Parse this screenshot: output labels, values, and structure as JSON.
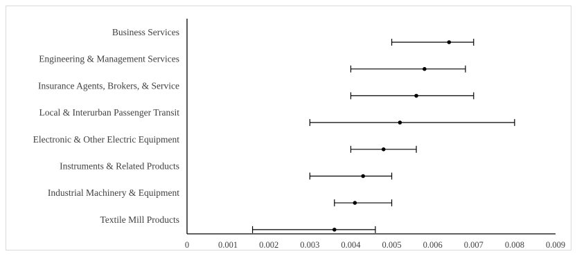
{
  "chart_data": {
    "type": "scatter",
    "orientation": "horizontal",
    "title": "",
    "xlabel": "",
    "ylabel": "",
    "xlim": [
      0,
      0.009
    ],
    "x_ticks": [
      "0",
      "0.001",
      "0.002",
      "0.003",
      "0.004",
      "0.005",
      "0.006",
      "0.007",
      "0.008",
      "0.009"
    ],
    "grid": false,
    "categories": [
      "Business Services",
      "Engineering & Management Services",
      "Insurance Agents, Brokers, & Service",
      "Local & Interurban Passenger Transit",
      "Electronic & Other Electric Equipment",
      "Instruments & Related Products",
      "Industrial Machinery & Equipment",
      "Textile Mill Products"
    ],
    "points": [
      {
        "value": 0.0064,
        "lower": 0.005,
        "upper": 0.007
      },
      {
        "value": 0.0058,
        "lower": 0.004,
        "upper": 0.0068
      },
      {
        "value": 0.0056,
        "lower": 0.004,
        "upper": 0.007
      },
      {
        "value": 0.0052,
        "lower": 0.003,
        "upper": 0.008
      },
      {
        "value": 0.0048,
        "lower": 0.004,
        "upper": 0.0056
      },
      {
        "value": 0.0043,
        "lower": 0.003,
        "upper": 0.005
      },
      {
        "value": 0.0041,
        "lower": 0.0036,
        "upper": 0.005
      },
      {
        "value": 0.0036,
        "lower": 0.0016,
        "upper": 0.0046
      }
    ],
    "colors": {
      "marker": "#000000",
      "errorbar": "#000000",
      "axis": "#000000",
      "text": "#404040"
    }
  }
}
